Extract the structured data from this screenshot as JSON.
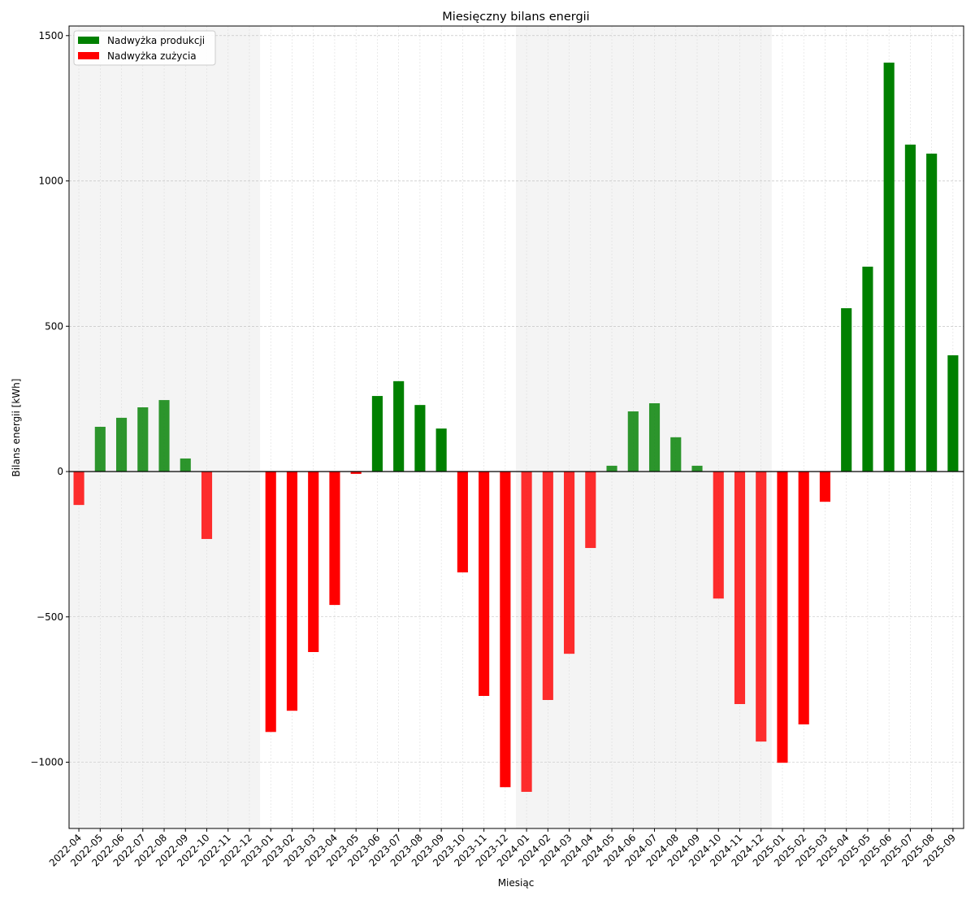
{
  "chart_data": {
    "type": "bar",
    "title": "Miesięczny bilans energii",
    "xlabel": "Miesiąc",
    "ylabel": "Bilans energii [kWh]",
    "ylim": [
      -1228,
      1533
    ],
    "yticks": [
      -1000,
      -500,
      0,
      500,
      1000,
      1500
    ],
    "ytick_labels": [
      "−1000",
      "−500",
      "0",
      "500",
      "1000",
      "1500"
    ],
    "grid": true,
    "legend_position": "top-left",
    "legend": [
      {
        "label": "Nadwyżka produkcji",
        "color": "#008000"
      },
      {
        "label": "Nadwyżka zużycia",
        "color": "#ff0000"
      }
    ],
    "shaded_years": [
      "2022",
      "2024"
    ],
    "categories": [
      "2022-04",
      "2022-05",
      "2022-06",
      "2022-07",
      "2022-08",
      "2022-09",
      "2022-10",
      "2022-11",
      "2022-12",
      "2023-01",
      "2023-02",
      "2023-03",
      "2023-04",
      "2023-05",
      "2023-06",
      "2023-07",
      "2023-08",
      "2023-09",
      "2023-10",
      "2023-11",
      "2023-12",
      "2024-01",
      "2024-02",
      "2024-03",
      "2024-04",
      "2024-05",
      "2024-06",
      "2024-07",
      "2024-08",
      "2024-09",
      "2024-10",
      "2024-11",
      "2024-12",
      "2025-01",
      "2025-02",
      "2025-03",
      "2025-04",
      "2025-05",
      "2025-06",
      "2025-07",
      "2025-08",
      "2025-09"
    ],
    "values": [
      -115,
      154,
      185,
      221,
      246,
      45,
      -232,
      0,
      0,
      -896,
      -823,
      -621,
      -459,
      -8,
      260,
      311,
      229,
      148,
      -347,
      -772,
      -1086,
      -1102,
      -786,
      -627,
      -263,
      20,
      207,
      235,
      118,
      20,
      -437,
      -800,
      -929,
      -1002,
      -870,
      -104,
      562,
      705,
      1407,
      1125,
      1094,
      400
    ]
  }
}
